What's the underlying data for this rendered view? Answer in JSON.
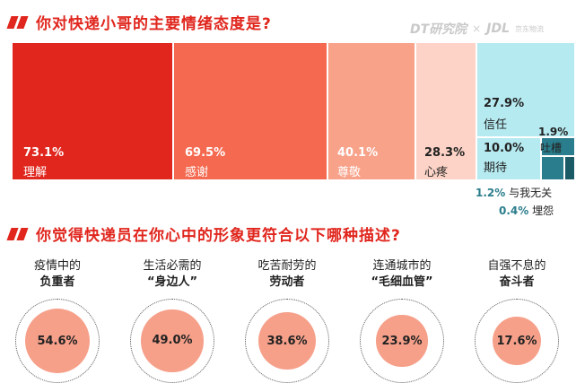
{
  "q1": {
    "title": "你对快递小哥的主要情绪态度是?"
  },
  "q2": {
    "title": "你觉得快递员在你心中的形象更符合以下哪种描述?"
  },
  "logos": {
    "dt": "DT研究院",
    "separator": "×",
    "jdl": "JDL",
    "jdl_sub": "京东物流"
  },
  "chart_data": [
    {
      "type": "treemap",
      "title": "你对快递小哥的主要情绪态度是?",
      "categories": [
        "理解",
        "感谢",
        "尊敬",
        "心疼",
        "信任",
        "期待",
        "吐槽",
        "与我无关",
        "埋怨"
      ],
      "values": [
        73.1,
        69.5,
        40.1,
        28.3,
        27.9,
        10.0,
        1.9,
        1.2,
        0.4
      ],
      "labels": [
        "73.1%",
        "69.5%",
        "40.1%",
        "28.3%",
        "27.9%",
        "10.0%",
        "1.9%",
        "1.2%",
        "0.4%"
      ],
      "colors": [
        "#e0261d",
        "#f4694f",
        "#f8a28a",
        "#fcd3c6",
        "#b5eaf0",
        "#b5eaf0",
        "#2a7d8c",
        "#2a7d8c",
        "#1a5b66"
      ]
    },
    {
      "type": "bar",
      "title": "你觉得快递员在你心中的形象更符合以下哪种描述?",
      "categories": [
        "疫情中的负重者",
        "生活必需的“身边人”",
        "吃苦耐劳的劳动者",
        "连通城市的“毛细血管”",
        "自强不息的奋斗者"
      ],
      "values": [
        54.6,
        49.0,
        38.6,
        23.9,
        17.6
      ],
      "labels": [
        "54.6%",
        "49.0%",
        "38.6%",
        "23.9%",
        "17.6%"
      ]
    }
  ],
  "personas": [
    {
      "line1": "疫情中的",
      "line2": "负重者",
      "pct": "54.6%",
      "value": 54.6
    },
    {
      "line1": "生活必需的",
      "line2": "“身边人”",
      "pct": "49.0%",
      "value": 49.0
    },
    {
      "line1": "吃苦耐劳的",
      "line2": "劳动者",
      "pct": "38.6%",
      "value": 38.6
    },
    {
      "line1": "连通城市的",
      "line2": "“毛细血管”",
      "pct": "23.9%",
      "value": 23.9
    },
    {
      "line1": "自强不息的",
      "line2": "奋斗者",
      "pct": "17.6%",
      "value": 17.6
    }
  ]
}
